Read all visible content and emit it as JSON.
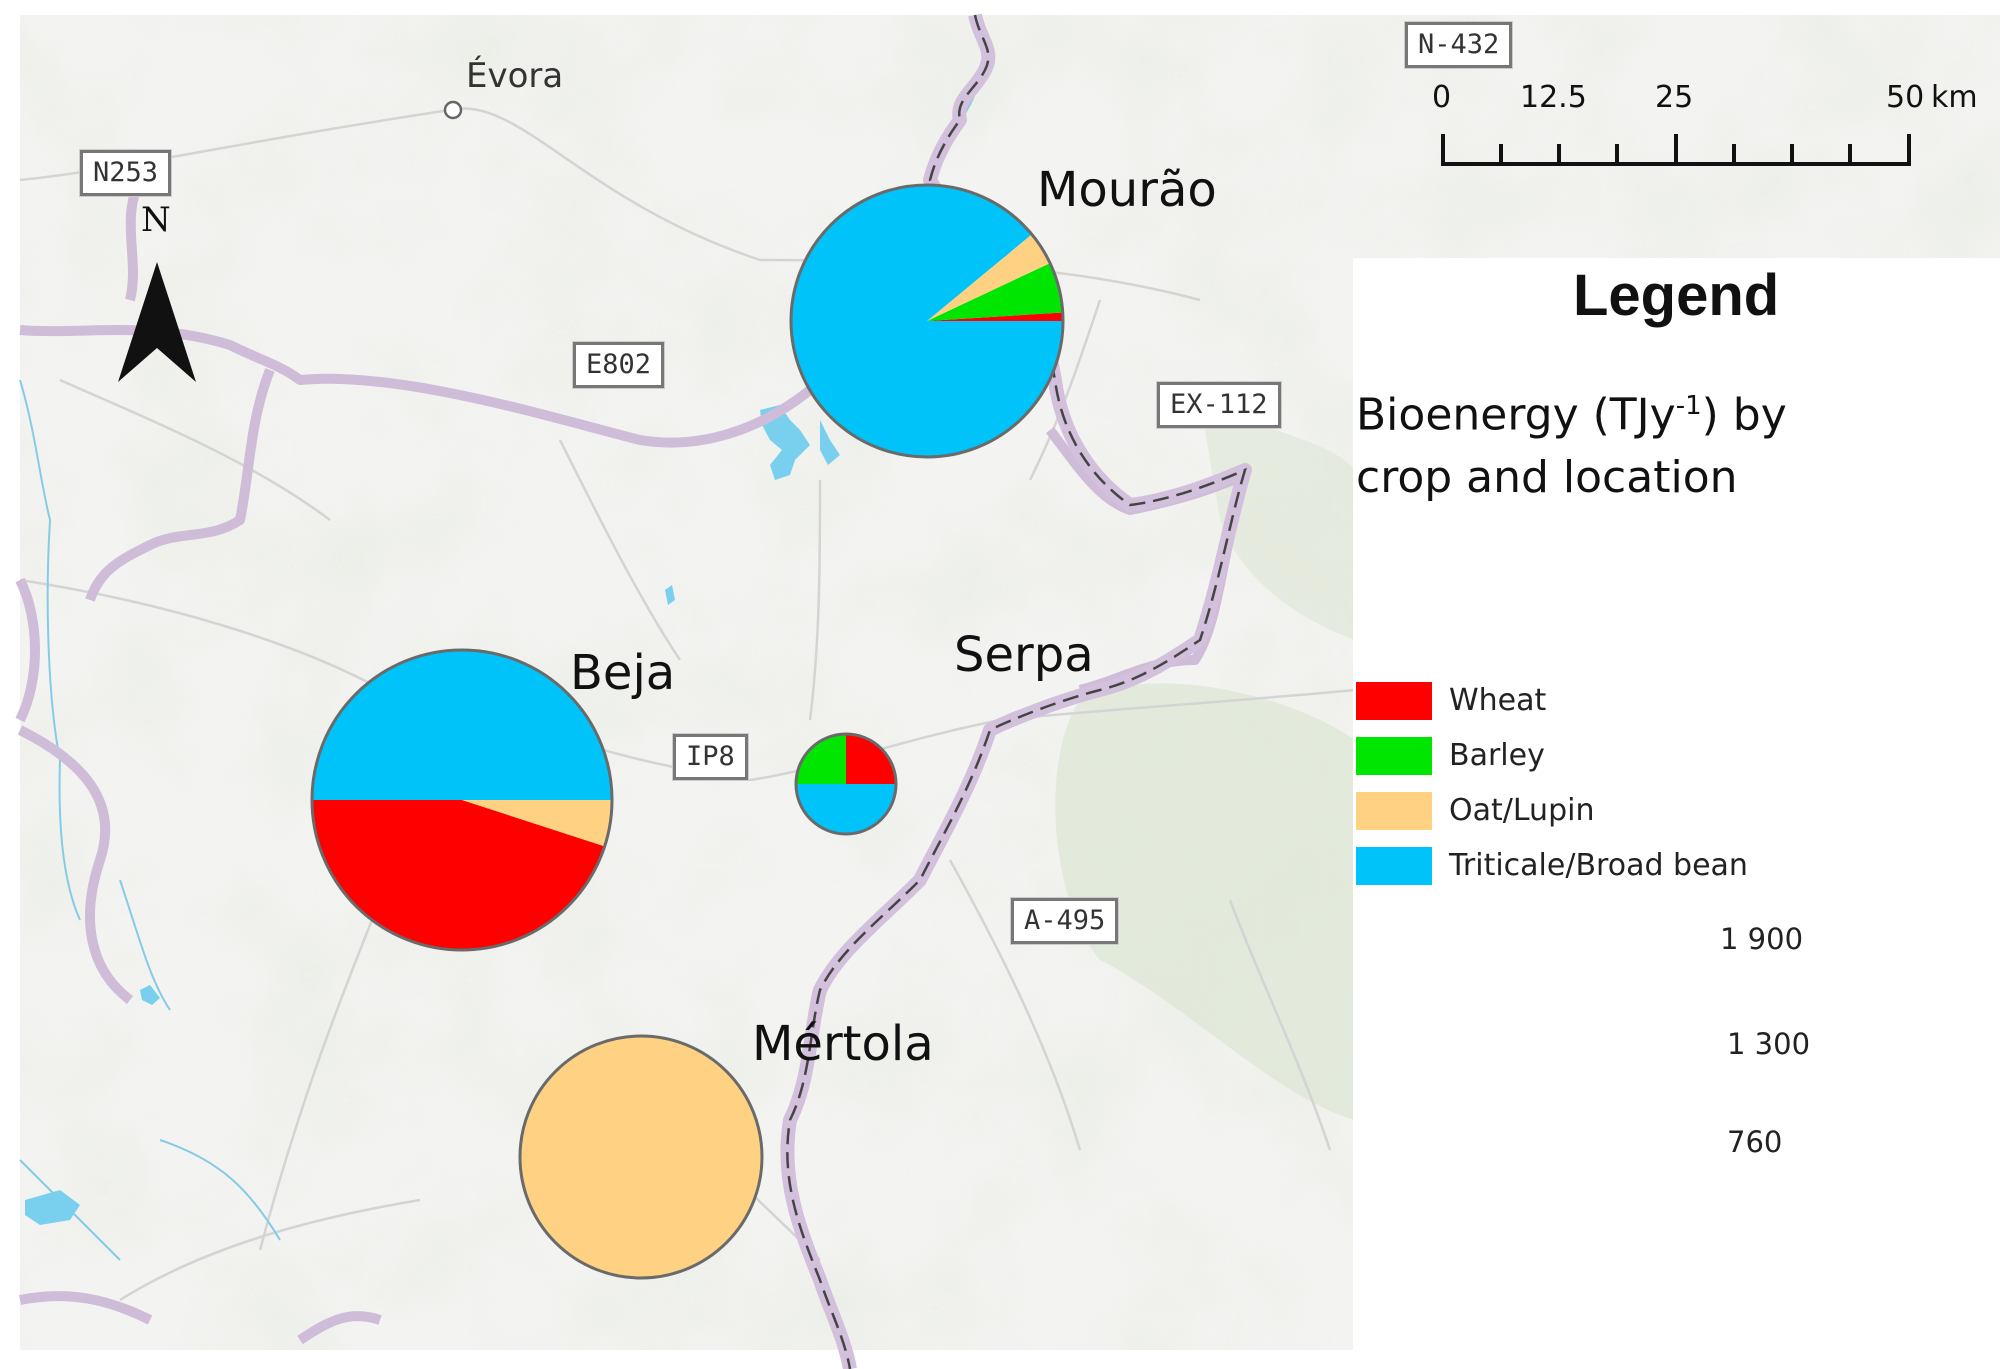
{
  "colors": {
    "wheat": "#ff0000",
    "barley": "#00e600",
    "oat_lupin": "#ffd183",
    "triticale_broad_bean": "#00c3fa",
    "border": "#cdbad7",
    "road": "#d6d6d6",
    "water": "#79d0ee"
  },
  "roads": {
    "n253": "N253",
    "n432": "N-432",
    "e802": "E802",
    "ex112": "EX-112",
    "ip8": "IP8",
    "a495": "A-495"
  },
  "places": {
    "evora": "Évora",
    "mourao": "Mourão",
    "beja": "Beja",
    "serpa": "Serpa",
    "mertola": "Mértola"
  },
  "north_arrow": {
    "label": "N"
  },
  "scale_bar": {
    "ticks": [
      "0",
      "12.5",
      "25",
      "50"
    ],
    "unit": "km"
  },
  "legend": {
    "title": "Legend",
    "subtitle_pre": "Bioenergy (TJy",
    "subtitle_sup": "-1",
    "subtitle_post": ") by",
    "subtitle_line2": "crop and location",
    "items": [
      {
        "label": "Wheat",
        "color": "#ff0000"
      },
      {
        "label": "Barley",
        "color": "#00e600"
      },
      {
        "label": "Oat/Lupin",
        "color": "#ffd183"
      },
      {
        "label": "Triticale/Broad bean",
        "color": "#00c3fa"
      }
    ],
    "size_values": [
      "1 900",
      "1 300",
      "760"
    ]
  },
  "chart_data": {
    "type": "pie",
    "categories": [
      "Wheat",
      "Barley",
      "Oat/Lupin",
      "Triticale/Broad bean"
    ],
    "locations": [
      {
        "name": "Mourão",
        "total": 1300,
        "values": [
          13,
          78,
          52,
          1157
        ]
      },
      {
        "name": "Beja",
        "total": 1600,
        "values": [
          720,
          0,
          80,
          800
        ]
      },
      {
        "name": "Serpa",
        "total": 180,
        "values": [
          45,
          45,
          0,
          90
        ]
      },
      {
        "name": "Mértola",
        "total": 1000,
        "values": [
          0,
          0,
          1000,
          0
        ]
      }
    ],
    "size_legend": [
      1900,
      1300,
      760
    ]
  }
}
